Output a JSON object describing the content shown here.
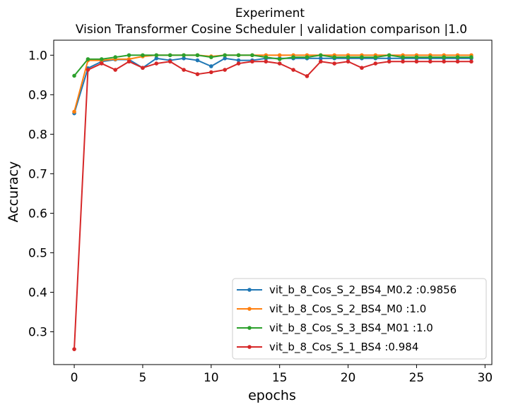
{
  "chart_data": {
    "type": "line",
    "title": "Experiment",
    "subtitle": "Vision Transformer Cosine Scheduler | validation comparison |1.0",
    "xlabel": "epochs",
    "ylabel": "Accuracy",
    "xlim": [
      -1.5,
      30.5
    ],
    "ylim": [
      0.217,
      1.038
    ],
    "xticks": [
      0,
      5,
      10,
      15,
      20,
      25,
      30
    ],
    "xtick_labels": [
      "0",
      "5",
      "10",
      "15",
      "20",
      "25",
      "30"
    ],
    "yticks": [
      0.3,
      0.4,
      0.5,
      0.6,
      0.7,
      0.8,
      0.9,
      1.0
    ],
    "ytick_labels": [
      "0.3",
      "0.4",
      "0.5",
      "0.6",
      "0.7",
      "0.8",
      "0.9",
      "1.0"
    ],
    "grid": false,
    "legend_position": "lower-right",
    "x": [
      0,
      1,
      2,
      3,
      4,
      5,
      6,
      7,
      8,
      9,
      10,
      11,
      12,
      13,
      14,
      15,
      16,
      17,
      18,
      19,
      20,
      21,
      22,
      23,
      24,
      25,
      26,
      27,
      28,
      29
    ],
    "series": [
      {
        "name": "vit_b_8_Cos_S_2_BS4_M0.2  :0.9856",
        "color": "#1f77b4",
        "values": [
          0.853,
          0.967,
          0.984,
          0.989,
          0.989,
          0.968,
          0.992,
          0.987,
          0.992,
          0.987,
          0.972,
          0.992,
          0.987,
          0.987,
          0.992,
          0.992,
          0.992,
          0.992,
          0.992,
          0.992,
          0.992,
          0.992,
          0.992,
          0.992,
          0.992,
          0.992,
          0.992,
          0.992,
          0.992,
          0.992
        ]
      },
      {
        "name": "vit_b_8_Cos_S_2_BS4_M0  :1.0",
        "color": "#ff7f0e",
        "values": [
          0.857,
          0.987,
          0.987,
          0.99,
          0.99,
          0.997,
          1.0,
          1.0,
          1.0,
          1.0,
          0.997,
          1.0,
          1.0,
          1.0,
          1.0,
          1.0,
          1.0,
          1.0,
          1.0,
          1.0,
          1.0,
          1.0,
          1.0,
          1.0,
          1.0,
          1.0,
          1.0,
          1.0,
          1.0,
          1.0
        ]
      },
      {
        "name": "vit_b_8_Cos_S_3_BS4_M01  :1.0",
        "color": "#2ca02c",
        "values": [
          0.948,
          0.99,
          0.99,
          0.995,
          1.0,
          1.0,
          1.0,
          1.0,
          1.0,
          1.0,
          0.995,
          1.0,
          1.0,
          1.0,
          0.995,
          0.99,
          0.995,
          0.995,
          1.0,
          0.995,
          0.995,
          0.995,
          0.995,
          1.0,
          0.995,
          0.995,
          0.995,
          0.995,
          0.995,
          0.995
        ]
      },
      {
        "name": "vit_b_8_Cos_S_1_BS4  :0.984",
        "color": "#d62728",
        "values": [
          0.256,
          0.963,
          0.979,
          0.963,
          0.984,
          0.968,
          0.979,
          0.984,
          0.963,
          0.952,
          0.957,
          0.963,
          0.979,
          0.984,
          0.984,
          0.979,
          0.963,
          0.947,
          0.984,
          0.979,
          0.984,
          0.968,
          0.979,
          0.984,
          0.984,
          0.984,
          0.984,
          0.984,
          0.984,
          0.984
        ]
      }
    ]
  }
}
